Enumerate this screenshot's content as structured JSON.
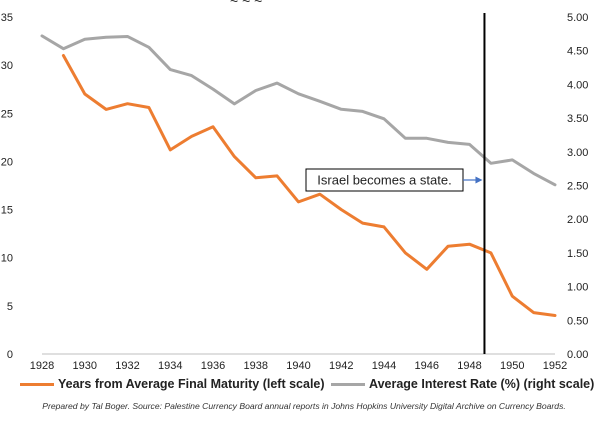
{
  "chart_data": {
    "type": "line",
    "x": [
      1928,
      1929,
      1930,
      1931,
      1932,
      1933,
      1934,
      1935,
      1936,
      1937,
      1938,
      1939,
      1940,
      1941,
      1942,
      1943,
      1944,
      1945,
      1946,
      1947,
      1948,
      1949,
      1950,
      1951,
      1952
    ],
    "x_tick_labels": [
      "1928",
      "1930",
      "1932",
      "1934",
      "1936",
      "1938",
      "1940",
      "1942",
      "1944",
      "1946",
      "1948",
      "1950",
      "1952"
    ],
    "series": [
      {
        "name": "Years from Average Final Maturity (left scale)",
        "axis": "left",
        "color": "#ed7d31",
        "x": [
          1929,
          1930,
          1931,
          1932,
          1933,
          1934,
          1935,
          1936,
          1937,
          1938,
          1939,
          1940,
          1941,
          1942,
          1943,
          1944,
          1945,
          1946,
          1947,
          1948,
          1949,
          1950,
          1951,
          1952
        ],
        "values": [
          31.0,
          27.0,
          25.4,
          26.0,
          25.6,
          21.2,
          22.6,
          23.6,
          20.5,
          18.3,
          18.5,
          15.8,
          16.6,
          15.0,
          13.6,
          13.2,
          10.5,
          8.8,
          11.2,
          11.4,
          10.5,
          6.0,
          4.3,
          4.0
        ]
      },
      {
        "name": "Average Interest Rate (%) (right scale)",
        "axis": "right",
        "color": "#a6a6a6",
        "x": [
          1928,
          1929,
          1930,
          1931,
          1932,
          1933,
          1934,
          1935,
          1936,
          1937,
          1938,
          1939,
          1940,
          1941,
          1942,
          1943,
          1944,
          1945,
          1946,
          1947,
          1948,
          1949,
          1950,
          1951,
          1952
        ],
        "values": [
          4.72,
          4.53,
          4.67,
          4.7,
          4.71,
          4.55,
          4.22,
          4.13,
          3.93,
          3.71,
          3.91,
          4.02,
          3.86,
          3.75,
          3.63,
          3.6,
          3.49,
          3.2,
          3.2,
          3.14,
          3.11,
          2.83,
          2.88,
          2.68,
          2.51
        ]
      }
    ],
    "y_left": {
      "range": [
        0,
        35
      ],
      "ticks": [
        "0",
        "5",
        "10",
        "15",
        "20",
        "25",
        "30",
        "35"
      ]
    },
    "y_right": {
      "range": [
        0,
        5
      ],
      "ticks": [
        "0.00",
        "0.50",
        "1.00",
        "1.50",
        "2.00",
        "2.50",
        "3.00",
        "3.50",
        "4.00",
        "4.50",
        "5.00"
      ]
    },
    "marker_line_x": 1948.7,
    "annotation": {
      "text": "Israel becomes a state.",
      "arrow_color": "#4472c4"
    },
    "title_fragment": "~ ~ ~",
    "grid": false,
    "legend_position": "bottom",
    "source_note": "Prepared by Tal Boger. Source: Palestine Currency Board annual reports in Johns Hopkins University Digital Archive on Currency Boards."
  }
}
